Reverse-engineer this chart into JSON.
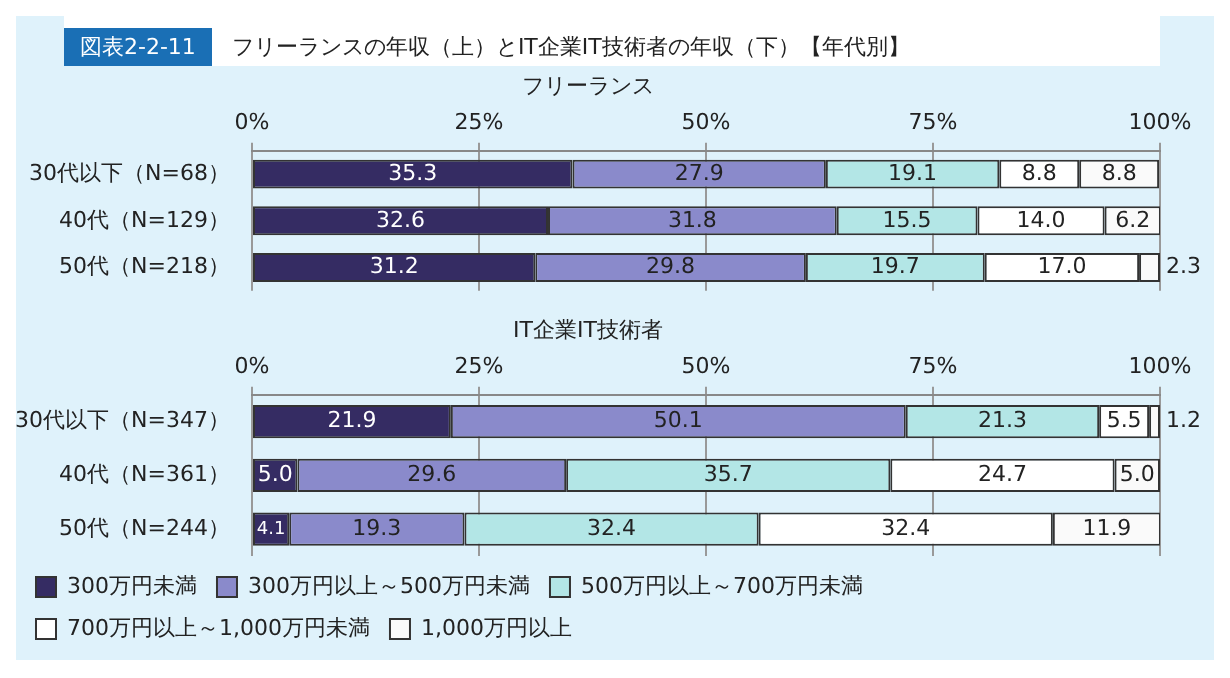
{
  "chart_data": [
    {
      "type": "bar",
      "orientation": "horizontal",
      "stacked": true,
      "title": "フリーランス",
      "annotations": [
        "図表2-2-11",
        "フリーランスの年収（上）とIT企業IT技術者の年収（下）【年代別】"
      ],
      "categories": [
        "30代以下（N=68）",
        "40代（N=129）",
        "50代（N=218）"
      ],
      "xlim": [
        0,
        100
      ],
      "xticks": [
        {
          "value": 0,
          "label": "0%"
        },
        {
          "value": 25,
          "label": "25%"
        },
        {
          "value": 50,
          "label": "50%"
        },
        {
          "value": 75,
          "label": "75%"
        },
        {
          "value": 100,
          "label": "100%"
        }
      ],
      "grid": "x",
      "legend": false,
      "series": [
        {
          "color": "#352c63",
          "values": [
            35.3,
            32.6,
            31.2
          ],
          "value_labels": [
            "35.3",
            "32.6",
            "31.2"
          ]
        },
        {
          "color": "#8a8acb",
          "values": [
            27.9,
            31.8,
            29.8
          ],
          "value_labels": [
            "27.9",
            "31.8",
            "29.8"
          ]
        },
        {
          "color": "#b3e6e6",
          "values": [
            19.1,
            15.5,
            19.7
          ],
          "value_labels": [
            "19.1",
            "15.5",
            "19.7"
          ]
        },
        {
          "color": "#ffffff",
          "values": [
            8.8,
            14.0,
            17.0
          ],
          "value_labels": [
            "8.8",
            "14.0",
            "17.0"
          ]
        },
        {
          "color": "#fafafa",
          "values": [
            8.8,
            6.2,
            2.3
          ],
          "value_labels": [
            "8.8",
            "6.2",
            "2.3"
          ]
        }
      ]
    },
    {
      "type": "bar",
      "orientation": "horizontal",
      "stacked": true,
      "title": "IT企業IT技術者",
      "categories": [
        "30代以下（N=347）",
        "40代（N=361）",
        "50代（N=244）"
      ],
      "xlim": [
        0,
        100
      ],
      "xticks": [
        {
          "value": 0,
          "label": "0%"
        },
        {
          "value": 25,
          "label": "25%"
        },
        {
          "value": 50,
          "label": "50%"
        },
        {
          "value": 75,
          "label": "75%"
        },
        {
          "value": 100,
          "label": "100%"
        }
      ],
      "grid": "x",
      "legend": "bottom",
      "series": [
        {
          "name": "300万円未満",
          "color": "#352c63",
          "values": [
            21.9,
            5.0,
            4.1
          ],
          "value_labels": [
            "21.9",
            "5.0",
            "4.1"
          ]
        },
        {
          "name": "300万円以上～500万円未満",
          "color": "#8a8acb",
          "values": [
            50.1,
            29.6,
            19.3
          ],
          "value_labels": [
            "50.1",
            "29.6",
            "19.3"
          ]
        },
        {
          "name": "500万円以上～700万円未満",
          "color": "#b3e6e6",
          "values": [
            21.3,
            35.7,
            32.4
          ],
          "value_labels": [
            "21.3",
            "35.7",
            "32.4"
          ]
        },
        {
          "name": "700万円以上～1,000万円未満",
          "color": "#ffffff",
          "values": [
            5.5,
            24.7,
            32.4
          ],
          "value_labels": [
            "5.5",
            "24.7",
            "32.4"
          ]
        },
        {
          "name": "1,000万円以上",
          "color": "#fafafa",
          "values": [
            1.2,
            5.0,
            11.9
          ],
          "value_labels": [
            "1.2",
            "5.0",
            "11.9"
          ]
        }
      ]
    }
  ]
}
